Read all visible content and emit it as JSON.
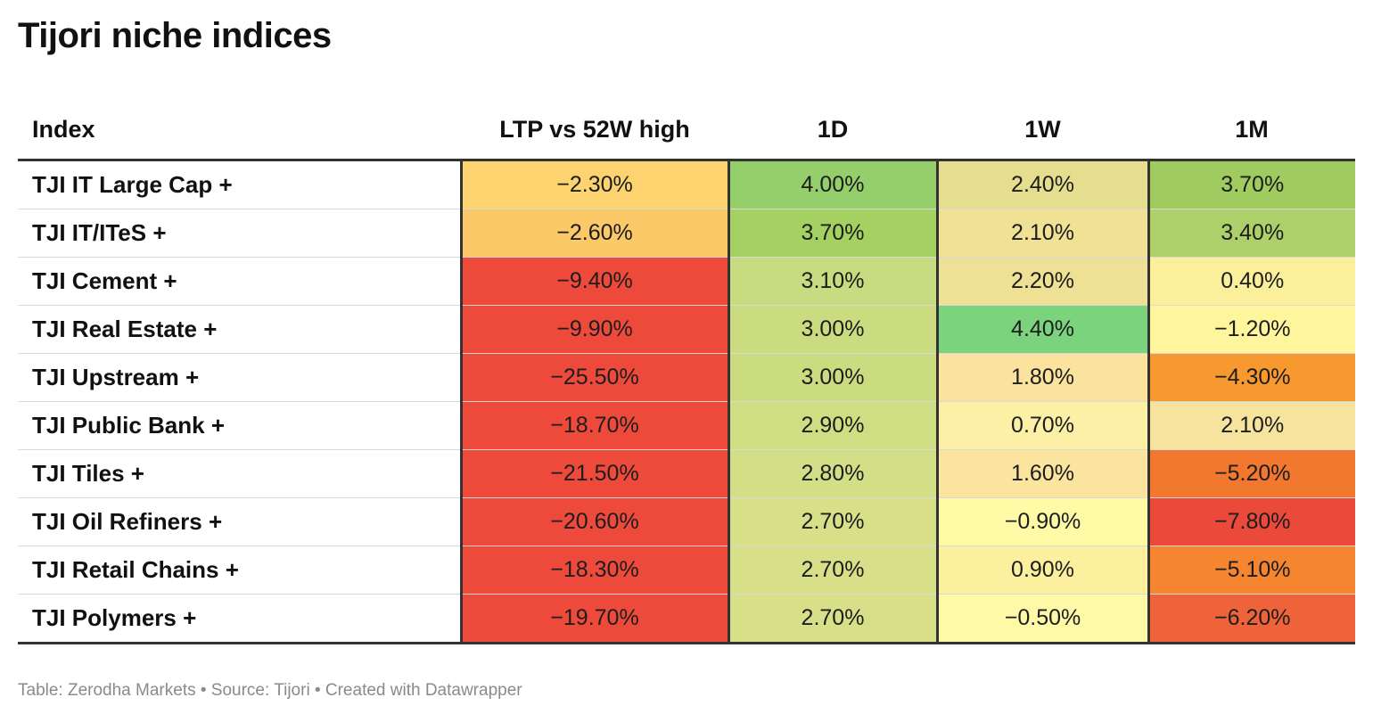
{
  "title": "Tijori niche indices",
  "footer": "Table: Zerodha Markets • Source: Tijori • Created with Datawrapper",
  "chart_data": {
    "type": "table",
    "title": "Tijori niche indices",
    "columns": [
      "Index",
      "LTP vs 52W high",
      "1D",
      "1W",
      "1M"
    ],
    "rows": [
      {
        "index": "TJI IT Large Cap +",
        "ltp_vs_52w_high": "−2.30%",
        "d1": "4.00%",
        "w1": "2.40%",
        "m1": "3.70%"
      },
      {
        "index": "TJI IT/ITeS +",
        "ltp_vs_52w_high": "−2.60%",
        "d1": "3.70%",
        "w1": "2.10%",
        "m1": "3.40%"
      },
      {
        "index": "TJI Cement +",
        "ltp_vs_52w_high": "−9.40%",
        "d1": "3.10%",
        "w1": "2.20%",
        "m1": "0.40%"
      },
      {
        "index": "TJI Real Estate +",
        "ltp_vs_52w_high": "−9.90%",
        "d1": "3.00%",
        "w1": "4.40%",
        "m1": "−1.20%"
      },
      {
        "index": "TJI Upstream +",
        "ltp_vs_52w_high": "−25.50%",
        "d1": "3.00%",
        "w1": "1.80%",
        "m1": "−4.30%"
      },
      {
        "index": "TJI Public Bank +",
        "ltp_vs_52w_high": "−18.70%",
        "d1": "2.90%",
        "w1": "0.70%",
        "m1": "2.10%"
      },
      {
        "index": "TJI Tiles +",
        "ltp_vs_52w_high": "−21.50%",
        "d1": "2.80%",
        "w1": "1.60%",
        "m1": "−5.20%"
      },
      {
        "index": "TJI Oil Refiners +",
        "ltp_vs_52w_high": "−20.60%",
        "d1": "2.70%",
        "w1": "−0.90%",
        "m1": "−7.80%"
      },
      {
        "index": "TJI Retail Chains +",
        "ltp_vs_52w_high": "−18.30%",
        "d1": "2.70%",
        "w1": "0.90%",
        "m1": "−5.10%"
      },
      {
        "index": "TJI Polymers +",
        "ltp_vs_52w_high": "−19.70%",
        "d1": "2.70%",
        "w1": "−0.50%",
        "m1": "−6.20%"
      }
    ],
    "colors": {
      "ltp_vs_52w_high": [
        "#fcd36e",
        "#fbc967",
        "#ee4a3c",
        "#ee4a3c",
        "#ee4a3c",
        "#ee4a3c",
        "#ee4a3c",
        "#ee4a3c",
        "#ee4a3c",
        "#ee4a3c"
      ],
      "d1": [
        "#94cf6c",
        "#a5d062",
        "#c7dc80",
        "#cbdc80",
        "#cbdc80",
        "#cfdd83",
        "#d3df86",
        "#d7e088",
        "#d7e088",
        "#d7e088"
      ],
      "w1": [
        "#e5de8e",
        "#f1e194",
        "#eee094",
        "#7cd37e",
        "#fbe39e",
        "#fcefa6",
        "#fbe49e",
        "#fffaa5",
        "#fcf09f",
        "#fef9a6"
      ],
      "m1": [
        "#a0cb5e",
        "#aed06a",
        "#fcef9c",
        "#fef59d",
        "#f7992f",
        "#f6e49e",
        "#f2772f",
        "#eb4a3a",
        "#f5862f",
        "#ee633a"
      ]
    }
  }
}
